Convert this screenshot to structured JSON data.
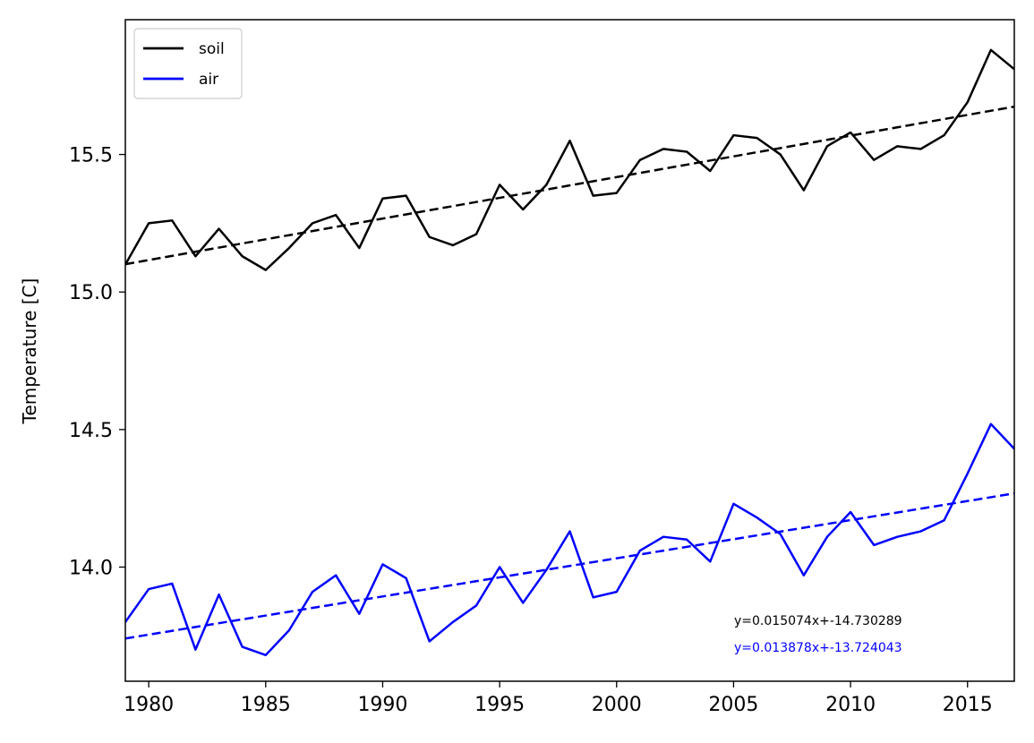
{
  "chart_data": {
    "type": "line",
    "ylabel": "Temperature [C]",
    "xlabel": "",
    "xlim": [
      1979,
      2017
    ],
    "ylim": [
      13.585,
      15.99
    ],
    "xticks": [
      1980,
      1985,
      1990,
      1995,
      2000,
      2005,
      2010,
      2015
    ],
    "yticks": [
      14.0,
      14.5,
      15.0,
      15.5
    ],
    "x": [
      1979,
      1980,
      1981,
      1982,
      1983,
      1984,
      1985,
      1986,
      1987,
      1988,
      1989,
      1990,
      1991,
      1992,
      1993,
      1994,
      1995,
      1996,
      1997,
      1998,
      1999,
      2000,
      2001,
      2002,
      2003,
      2004,
      2005,
      2006,
      2007,
      2008,
      2009,
      2010,
      2011,
      2012,
      2013,
      2014,
      2015,
      2016,
      2017
    ],
    "series": [
      {
        "name": "soil",
        "color": "#000000",
        "values": [
          15.1,
          15.25,
          15.26,
          15.13,
          15.23,
          15.13,
          15.08,
          15.16,
          15.25,
          15.28,
          15.16,
          15.34,
          15.35,
          15.2,
          15.17,
          15.21,
          15.39,
          15.3,
          15.39,
          15.55,
          15.35,
          15.36,
          15.48,
          15.52,
          15.51,
          15.44,
          15.57,
          15.56,
          15.5,
          15.37,
          15.53,
          15.58,
          15.48,
          15.53,
          15.52,
          15.57,
          15.69,
          15.88,
          15.81
        ],
        "trend": {
          "slope": 0.015074,
          "intercept": -14.730289,
          "label": "y=0.015074x+-14.730289"
        }
      },
      {
        "name": "air",
        "color": "#0000ff",
        "values": [
          13.8,
          13.92,
          13.94,
          13.7,
          13.9,
          13.71,
          13.68,
          13.77,
          13.91,
          13.97,
          13.83,
          14.01,
          13.96,
          13.73,
          13.8,
          13.86,
          14.0,
          13.87,
          13.99,
          14.13,
          13.89,
          13.91,
          14.06,
          14.11,
          14.1,
          14.02,
          14.23,
          14.18,
          14.12,
          13.97,
          14.11,
          14.2,
          14.08,
          14.11,
          14.13,
          14.17,
          14.34,
          14.52,
          14.43
        ],
        "trend": {
          "slope": 0.013878,
          "intercept": -13.724043,
          "label": "y=0.013878x+-13.724043"
        }
      }
    ],
    "legend_position": "top-left",
    "grid": false
  }
}
